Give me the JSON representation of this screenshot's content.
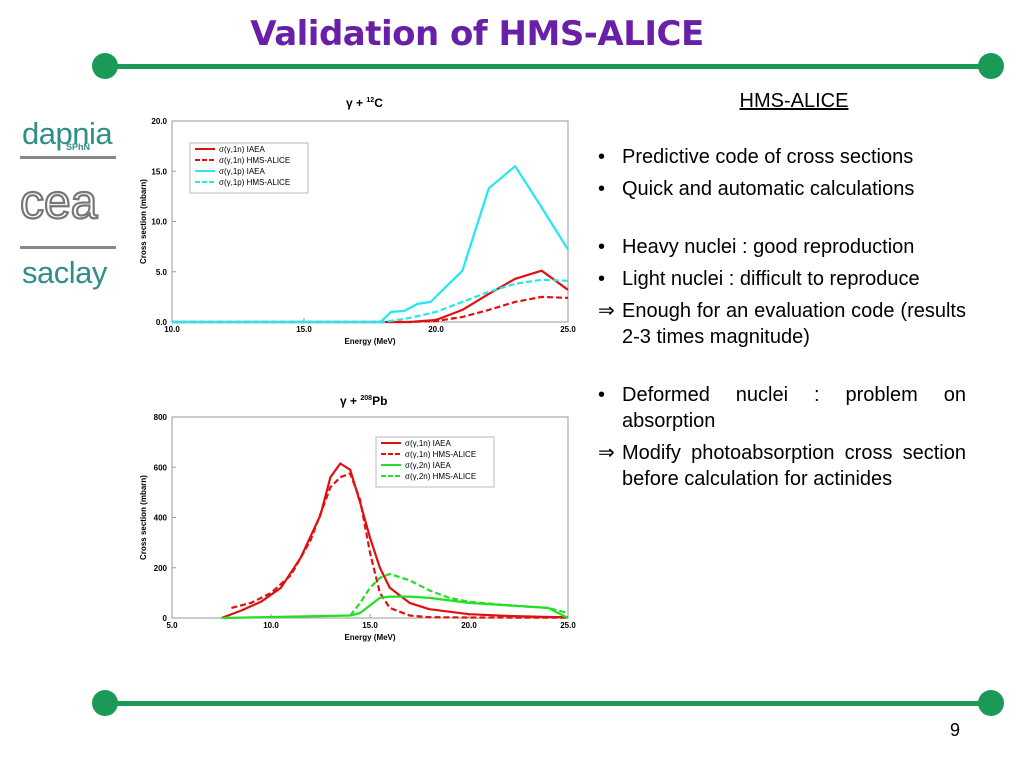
{
  "slide": {
    "title": "Validation of HMS-ALICE",
    "page_number": "9",
    "accent_color": "#1b9a57",
    "title_color": "#6a1fa8"
  },
  "logos": {
    "dapnia": "dapnia",
    "dapnia_sub": "SPhN",
    "cea": "cea",
    "saclay": "saclay"
  },
  "panel": {
    "heading": "HMS-ALICE",
    "items": [
      {
        "mark": "•",
        "text": "Predictive code of cross sections"
      },
      {
        "mark": "•",
        "text": "Quick and automatic calculations"
      },
      {
        "mark": "•",
        "text": "Heavy nuclei : good reproduction"
      },
      {
        "mark": "•",
        "text": "Light nuclei : difficult to reproduce"
      },
      {
        "mark": "⇒",
        "text": "Enough for an evaluation code (results 2-3 times magnitude)"
      },
      {
        "mark": "•",
        "text": "Deformed nuclei : problem on absorption"
      },
      {
        "mark": "⇒",
        "text": "Modify photoabsorption cross section before calculation for actinides"
      }
    ]
  },
  "chart_data": [
    {
      "type": "line",
      "title_gamma": "γ",
      "title_plus": "+",
      "title_mass": "12",
      "title_element": "C",
      "xlabel": "Energy (MeV)",
      "ylabel": "Cross section (mbarn)",
      "xlim": [
        10.0,
        25.0
      ],
      "ylim": [
        0.0,
        20.0
      ],
      "xticks": [
        "10.0",
        "15.0",
        "20.0",
        "25.0"
      ],
      "yticks": [
        "0.0",
        "5.0",
        "10.0",
        "15.0",
        "20.0"
      ],
      "legend_position": "top-left",
      "series": [
        {
          "name": "σ(γ,1n) IAEA",
          "color": "#e01010",
          "dash": false,
          "points": [
            [
              10,
              0
            ],
            [
              18,
              0
            ],
            [
              19,
              0
            ],
            [
              20,
              0.2
            ],
            [
              21,
              1.2
            ],
            [
              22,
              2.8
            ],
            [
              23,
              4.3
            ],
            [
              24,
              5.1
            ],
            [
              25,
              3.2
            ]
          ]
        },
        {
          "name": "σ(γ,1n) HMS-ALICE",
          "color": "#e01010",
          "dash": true,
          "points": [
            [
              10,
              0
            ],
            [
              18,
              0
            ],
            [
              19,
              0
            ],
            [
              20,
              0.1
            ],
            [
              21,
              0.5
            ],
            [
              22,
              1.2
            ],
            [
              23,
              2.0
            ],
            [
              24,
              2.5
            ],
            [
              25,
              2.4
            ]
          ]
        },
        {
          "name": "σ(γ,1p) IAEA",
          "color": "#22e8f0",
          "dash": false,
          "points": [
            [
              10,
              0
            ],
            [
              17.9,
              0
            ],
            [
              18.3,
              1.0
            ],
            [
              18.8,
              1.1
            ],
            [
              19.3,
              1.8
            ],
            [
              19.8,
              2.0
            ],
            [
              20.3,
              3.3
            ],
            [
              21,
              5.1
            ],
            [
              22,
              13.3
            ],
            [
              23,
              15.5
            ],
            [
              24,
              11.4
            ],
            [
              25,
              7.2
            ]
          ]
        },
        {
          "name": "σ(γ,1p) HMS-ALICE",
          "color": "#22e8f0",
          "dash": true,
          "points": [
            [
              10,
              0
            ],
            [
              18,
              0
            ],
            [
              19,
              0.4
            ],
            [
              20,
              1.0
            ],
            [
              21,
              2.0
            ],
            [
              22,
              3.0
            ],
            [
              23,
              3.8
            ],
            [
              24,
              4.2
            ],
            [
              25,
              4.1
            ]
          ]
        }
      ]
    },
    {
      "type": "line",
      "title_gamma": "γ",
      "title_plus": "+",
      "title_mass": "208",
      "title_element": "Pb",
      "xlabel": "Energy (MeV)",
      "ylabel": "Cross section (mbarn)",
      "xlim": [
        5.0,
        25.0
      ],
      "ylim": [
        0,
        800
      ],
      "xticks": [
        "5.0",
        "10.0",
        "15.0",
        "20.0",
        "25.0"
      ],
      "yticks": [
        "0",
        "200",
        "400",
        "600",
        "800"
      ],
      "legend_position": "top-right",
      "series": [
        {
          "name": "σ(γ,1n) IAEA",
          "color": "#e01010",
          "dash": false,
          "points": [
            [
              7.5,
              0
            ],
            [
              8.5,
              30
            ],
            [
              9.5,
              65
            ],
            [
              10.5,
              120
            ],
            [
              11.5,
              240
            ],
            [
              12.5,
              410
            ],
            [
              13,
              560
            ],
            [
              13.5,
              615
            ],
            [
              14,
              590
            ],
            [
              14.5,
              460
            ],
            [
              15,
              320
            ],
            [
              15.5,
              200
            ],
            [
              16,
              120
            ],
            [
              17,
              60
            ],
            [
              18,
              35
            ],
            [
              20,
              15
            ],
            [
              22,
              8
            ],
            [
              24,
              4
            ],
            [
              25,
              3
            ]
          ]
        },
        {
          "name": "σ(γ,1n) HMS-ALICE",
          "color": "#e01010",
          "dash": true,
          "points": [
            [
              8,
              40
            ],
            [
              9,
              60
            ],
            [
              10,
              100
            ],
            [
              11,
              170
            ],
            [
              12,
              310
            ],
            [
              13,
              520
            ],
            [
              13.5,
              560
            ],
            [
              14,
              575
            ],
            [
              14.5,
              470
            ],
            [
              15,
              260
            ],
            [
              15.5,
              100
            ],
            [
              16,
              40
            ],
            [
              17,
              10
            ],
            [
              18,
              3
            ],
            [
              20,
              2
            ],
            [
              25,
              1
            ]
          ]
        },
        {
          "name": "σ(γ,2n) IAEA",
          "color": "#22e022",
          "dash": false,
          "points": [
            [
              7.5,
              0
            ],
            [
              14,
              10
            ],
            [
              14.5,
              20
            ],
            [
              15,
              50
            ],
            [
              15.5,
              80
            ],
            [
              16,
              85
            ],
            [
              17,
              85
            ],
            [
              18,
              80
            ],
            [
              19,
              70
            ],
            [
              20,
              60
            ],
            [
              22,
              50
            ],
            [
              24,
              40
            ],
            [
              25,
              0
            ]
          ]
        },
        {
          "name": "σ(γ,2n) HMS-ALICE",
          "color": "#22e022",
          "dash": true,
          "points": [
            [
              14,
              10
            ],
            [
              14.5,
              60
            ],
            [
              15,
              120
            ],
            [
              15.5,
              160
            ],
            [
              16,
              175
            ],
            [
              17,
              150
            ],
            [
              18,
              110
            ],
            [
              19,
              80
            ],
            [
              20,
              65
            ],
            [
              22,
              50
            ],
            [
              24,
              40
            ],
            [
              25,
              20
            ]
          ]
        }
      ]
    }
  ]
}
